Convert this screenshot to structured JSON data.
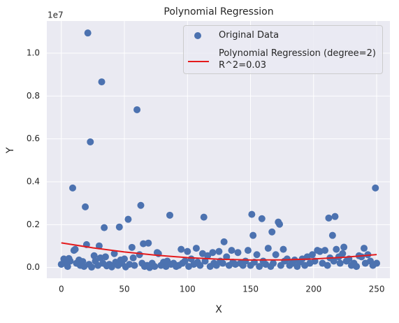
{
  "chart_data": {
    "type": "scatter",
    "title": "Polynomial Regression",
    "x_label": "X",
    "y_label": "Y",
    "y_offset_label": "1e7",
    "xlim": [
      -11.5,
      260.5
    ],
    "ylim": [
      -500000,
      11500000
    ],
    "xticks": [
      0,
      50,
      100,
      150,
      200,
      250
    ],
    "yticks": [
      {
        "value": 0,
        "label": "0.0"
      },
      {
        "value": 2000000,
        "label": "0.2"
      },
      {
        "value": 4000000,
        "label": "0.4"
      },
      {
        "value": 6000000,
        "label": "0.6"
      },
      {
        "value": 8000000,
        "label": "0.8"
      },
      {
        "value": 10000000,
        "label": "1.0"
      }
    ],
    "grid": true,
    "legend": "upper right",
    "series": [
      {
        "name": "Original Data",
        "color": "#4c72b0",
        "points": [
          [
            21,
            10940000
          ],
          [
            32,
            8660000
          ],
          [
            60,
            7360000
          ],
          [
            23,
            5860000
          ],
          [
            9,
            3710000
          ],
          [
            63,
            2900000
          ],
          [
            19,
            2830000
          ],
          [
            86,
            2440000
          ],
          [
            151,
            2480000
          ],
          [
            159,
            2280000
          ],
          [
            113,
            2350000
          ],
          [
            53,
            2250000
          ],
          [
            46,
            1890000
          ],
          [
            34,
            1860000
          ],
          [
            212,
            2310000
          ],
          [
            217,
            2380000
          ],
          [
            172,
            2120000
          ],
          [
            173,
            2020000
          ],
          [
            249,
            3710000
          ],
          [
            152,
            1500000
          ],
          [
            215,
            1500000
          ],
          [
            129,
            1200000
          ],
          [
            167,
            1660000
          ],
          [
            20,
            1070000
          ],
          [
            30,
            1010000
          ],
          [
            65,
            1110000
          ],
          [
            69,
            1140000
          ],
          [
            56,
            940000
          ],
          [
            0,
            150000
          ],
          [
            2,
            400000
          ],
          [
            3,
            250000
          ],
          [
            5,
            50000
          ],
          [
            6,
            420000
          ],
          [
            7,
            300000
          ],
          [
            10,
            800000
          ],
          [
            11,
            850000
          ],
          [
            12,
            200000
          ],
          [
            14,
            350000
          ],
          [
            15,
            100000
          ],
          [
            17,
            280000
          ],
          [
            18,
            50000
          ],
          [
            22,
            150000
          ],
          [
            24,
            20000
          ],
          [
            26,
            550000
          ],
          [
            27,
            300000
          ],
          [
            29,
            100000
          ],
          [
            31,
            450000
          ],
          [
            33,
            200000
          ],
          [
            35,
            500000
          ],
          [
            36,
            80000
          ],
          [
            38,
            150000
          ],
          [
            40,
            30000
          ],
          [
            42,
            650000
          ],
          [
            43,
            250000
          ],
          [
            45,
            100000
          ],
          [
            47,
            350000
          ],
          [
            48,
            200000
          ],
          [
            50,
            400000
          ],
          [
            51,
            30000
          ],
          [
            54,
            150000
          ],
          [
            57,
            450000
          ],
          [
            58,
            100000
          ],
          [
            62,
            600000
          ],
          [
            64,
            200000
          ],
          [
            66,
            50000
          ],
          [
            68,
            100000
          ],
          [
            70,
            0
          ],
          [
            72,
            200000
          ],
          [
            74,
            50000
          ],
          [
            76,
            700000
          ],
          [
            77,
            650000
          ],
          [
            79,
            100000
          ],
          [
            81,
            250000
          ],
          [
            83,
            50000
          ],
          [
            84,
            300000
          ],
          [
            87,
            150000
          ],
          [
            89,
            200000
          ],
          [
            91,
            50000
          ],
          [
            93,
            100000
          ],
          [
            95,
            850000
          ],
          [
            96,
            200000
          ],
          [
            98,
            300000
          ],
          [
            100,
            750000
          ],
          [
            101,
            50000
          ],
          [
            103,
            400000
          ],
          [
            105,
            150000
          ],
          [
            107,
            900000
          ],
          [
            108,
            250000
          ],
          [
            110,
            100000
          ],
          [
            112,
            650000
          ],
          [
            114,
            300000
          ],
          [
            116,
            550000
          ],
          [
            118,
            50000
          ],
          [
            120,
            700000
          ],
          [
            121,
            200000
          ],
          [
            123,
            100000
          ],
          [
            125,
            750000
          ],
          [
            126,
            300000
          ],
          [
            128,
            200000
          ],
          [
            131,
            500000
          ],
          [
            133,
            100000
          ],
          [
            135,
            800000
          ],
          [
            136,
            250000
          ],
          [
            138,
            150000
          ],
          [
            140,
            700000
          ],
          [
            142,
            200000
          ],
          [
            144,
            100000
          ],
          [
            146,
            300000
          ],
          [
            148,
            800000
          ],
          [
            150,
            100000
          ],
          [
            153,
            250000
          ],
          [
            155,
            600000
          ],
          [
            157,
            50000
          ],
          [
            160,
            300000
          ],
          [
            162,
            150000
          ],
          [
            164,
            900000
          ],
          [
            166,
            50000
          ],
          [
            168,
            200000
          ],
          [
            170,
            600000
          ],
          [
            174,
            100000
          ],
          [
            176,
            850000
          ],
          [
            177,
            300000
          ],
          [
            179,
            400000
          ],
          [
            181,
            100000
          ],
          [
            183,
            200000
          ],
          [
            185,
            350000
          ],
          [
            187,
            50000
          ],
          [
            189,
            250000
          ],
          [
            191,
            400000
          ],
          [
            193,
            100000
          ],
          [
            195,
            500000
          ],
          [
            197,
            200000
          ],
          [
            199,
            600000
          ],
          [
            201,
            300000
          ],
          [
            203,
            800000
          ],
          [
            205,
            750000
          ],
          [
            207,
            200000
          ],
          [
            209,
            800000
          ],
          [
            211,
            100000
          ],
          [
            213,
            450000
          ],
          [
            216,
            300000
          ],
          [
            218,
            850000
          ],
          [
            220,
            500000
          ],
          [
            221,
            200000
          ],
          [
            223,
            650000
          ],
          [
            224,
            950000
          ],
          [
            226,
            300000
          ],
          [
            228,
            400000
          ],
          [
            230,
            100000
          ],
          [
            232,
            200000
          ],
          [
            234,
            50000
          ],
          [
            236,
            550000
          ],
          [
            238,
            500000
          ],
          [
            240,
            900000
          ],
          [
            241,
            200000
          ],
          [
            243,
            600000
          ],
          [
            245,
            300000
          ],
          [
            247,
            100000
          ],
          [
            250,
            200000
          ]
        ]
      },
      {
        "name": "Polynomial Regression (degree=2)\nR^2=0.03",
        "color": "#e41a1c",
        "type": "line",
        "x": [
          0,
          25,
          50,
          75,
          100,
          125,
          150,
          175,
          200,
          225,
          250
        ],
        "values": [
          1150000,
          920000,
          728000,
          576000,
          462500,
          388000,
          353000,
          357000,
          400000,
          482000,
          603000
        ]
      }
    ]
  }
}
